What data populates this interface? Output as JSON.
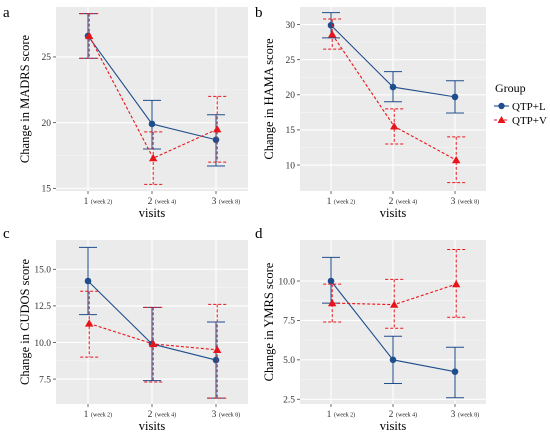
{
  "legend": {
    "title": "Group",
    "entries": [
      {
        "name": "QTP+L",
        "color": "#1f4e8c",
        "marker": "circle",
        "line": "solid"
      },
      {
        "name": "QTP+V",
        "color": "#e8141b",
        "marker": "triangle",
        "line": "dotted"
      }
    ]
  },
  "chart_data": [
    {
      "panel": "a",
      "type": "line",
      "xlabel": "visits",
      "ylabel": "Change in MADRS score",
      "x_ticks": [
        {
          "main": "1",
          "sub": "(week 2)"
        },
        {
          "main": "2",
          "sub": "(week 4)"
        },
        {
          "main": "3",
          "sub": "(week 8)"
        }
      ],
      "ylim": [
        14.8,
        28.8
      ],
      "yticks": [
        15,
        20,
        25
      ],
      "ytick_labels": [
        "15",
        "20",
        "25"
      ],
      "series": [
        {
          "name": "QTP+L",
          "mean": [
            26.6,
            19.9,
            18.7
          ],
          "upper": [
            28.3,
            21.7,
            20.6
          ],
          "lower": [
            24.9,
            18.0,
            16.7
          ]
        },
        {
          "name": "QTP+V",
          "mean": [
            26.6,
            17.3,
            19.5
          ],
          "upper": [
            28.3,
            19.3,
            22.0
          ],
          "lower": [
            24.9,
            15.3,
            17.0
          ]
        }
      ]
    },
    {
      "panel": "b",
      "type": "line",
      "xlabel": "visits",
      "ylabel": "Change in HAMA score",
      "x_ticks": [
        {
          "main": "1",
          "sub": "(week 2)"
        },
        {
          "main": "2",
          "sub": "(week 4)"
        },
        {
          "main": "3",
          "sub": "(week 8)"
        }
      ],
      "ylim": [
        6.3,
        32.5
      ],
      "yticks": [
        10,
        15,
        20,
        25,
        30
      ],
      "ytick_labels": [
        "10",
        "15",
        "20",
        "25",
        "30"
      ],
      "series": [
        {
          "name": "QTP+L",
          "mean": [
            29.9,
            21.1,
            19.7
          ],
          "upper": [
            31.7,
            23.3,
            22.0
          ],
          "lower": [
            28.1,
            19.0,
            17.4
          ]
        },
        {
          "name": "QTP+V",
          "mean": [
            28.6,
            15.5,
            10.7
          ],
          "upper": [
            30.8,
            18.0,
            14.0
          ],
          "lower": [
            26.5,
            13.0,
            7.5
          ]
        }
      ]
    },
    {
      "panel": "c",
      "type": "line",
      "xlabel": "visits",
      "ylabel": "Change in CUDOS score",
      "x_ticks": [
        {
          "main": "1",
          "sub": "(week 2)"
        },
        {
          "main": "2",
          "sub": "(week 4)"
        },
        {
          "main": "3",
          "sub": "(week 8)"
        }
      ],
      "ylim": [
        5.8,
        17.0
      ],
      "yticks": [
        7.5,
        10.0,
        12.5,
        15.0
      ],
      "ytick_labels": [
        "7.5",
        "10.0",
        "12.5",
        "15.0"
      ],
      "series": [
        {
          "name": "QTP+L",
          "mean": [
            14.2,
            9.9,
            8.8
          ],
          "upper": [
            16.5,
            12.4,
            11.4
          ],
          "lower": [
            11.9,
            7.4,
            6.2
          ]
        },
        {
          "name": "QTP+V",
          "mean": [
            11.3,
            9.9,
            9.5
          ],
          "upper": [
            13.5,
            12.4,
            12.6
          ],
          "lower": [
            9.0,
            7.3,
            6.2
          ]
        }
      ]
    },
    {
      "panel": "d",
      "type": "line",
      "xlabel": "visits",
      "ylabel": "Change in YMRS score",
      "x_ticks": [
        {
          "main": "1",
          "sub": "(week 2)"
        },
        {
          "main": "2",
          "sub": "(week 4)"
        },
        {
          "main": "3",
          "sub": "(week 8)"
        }
      ],
      "ylim": [
        2.2,
        12.6
      ],
      "yticks": [
        2.5,
        5.0,
        7.5,
        10.0
      ],
      "ytick_labels": [
        "2.5",
        "5.0",
        "7.5",
        "10.0"
      ],
      "series": [
        {
          "name": "QTP+L",
          "mean": [
            10.0,
            5.0,
            4.25
          ],
          "upper": [
            11.5,
            6.5,
            5.8
          ],
          "lower": [
            8.6,
            3.5,
            2.6
          ]
        },
        {
          "name": "QTP+V",
          "mean": [
            8.6,
            8.5,
            9.8
          ],
          "upper": [
            9.8,
            10.1,
            12.0
          ],
          "lower": [
            7.4,
            7.0,
            7.7
          ]
        }
      ]
    }
  ]
}
